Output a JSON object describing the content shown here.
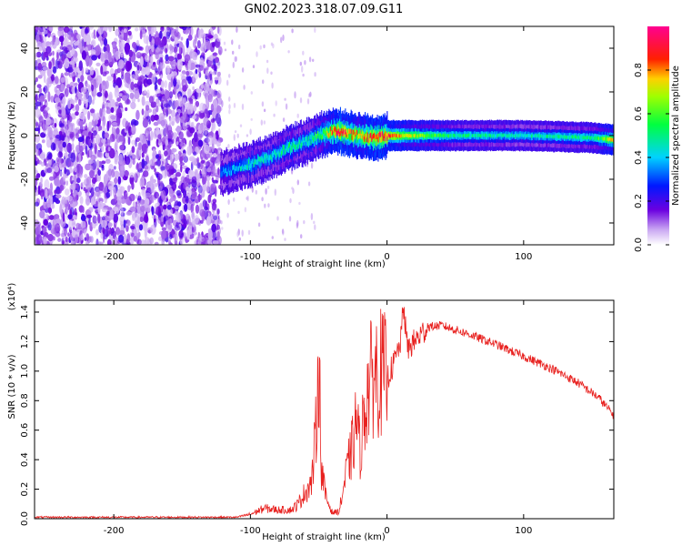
{
  "title": "GN02.2023.318.07.09.G11",
  "colors": {
    "snr_line": "#e8211f",
    "axis": "#000000",
    "background": "#ffffff"
  },
  "chart_data": [
    {
      "type": "heatmap",
      "xlabel": "Height of straight line (km)",
      "ylabel": "Frequency (Hz)",
      "xlim": [
        -258,
        166
      ],
      "ylim": [
        -50,
        50
      ],
      "x_ticks": [
        -200,
        -100,
        0,
        100
      ],
      "x_tick_labels": [
        "-200",
        "-100",
        "0",
        "100"
      ],
      "y_ticks": [
        -40,
        -20,
        0,
        20,
        40
      ],
      "y_tick_labels": [
        "-40",
        "-20",
        "0",
        "20",
        "40"
      ],
      "colorbar": {
        "label": "Normalized spectral amplitude",
        "range": [
          0,
          1
        ],
        "ticks": [
          0.0,
          0.2,
          0.4,
          0.6,
          0.8
        ],
        "tick_labels": [
          "0.0",
          "0.2",
          "0.4",
          "0.6",
          "0.8"
        ],
        "colormap": "rainbow (white-violet-blue-cyan-green-yellow-red-magenta)"
      },
      "noise_region_x": [
        -258,
        -122
      ],
      "signal_ridge": {
        "x": [
          -122,
          -110,
          -100,
          -90,
          -80,
          -70,
          -60,
          -50,
          -40,
          -35,
          -30,
          -20,
          -10,
          0,
          20,
          50,
          100,
          150,
          166
        ],
        "frequency_hz": [
          -17,
          -15,
          -13,
          -11,
          -8,
          -5,
          -3,
          0,
          2,
          2,
          1,
          0,
          -1,
          0,
          0,
          0,
          0,
          -1,
          -2
        ],
        "amplitude": [
          0.35,
          0.4,
          0.45,
          0.45,
          0.45,
          0.5,
          0.45,
          0.55,
          0.8,
          0.9,
          0.85,
          0.75,
          0.9,
          0.85,
          0.65,
          0.5,
          0.45,
          0.5,
          0.75
        ]
      },
      "grid": false
    },
    {
      "type": "line",
      "xlabel": "Height of straight line (km)",
      "ylabel": "SNR (10 * v/v)",
      "y_scale_label": "(x10⁴)",
      "xlim": [
        -258,
        166
      ],
      "ylim": [
        0,
        1.48
      ],
      "x_ticks": [
        -200,
        -100,
        0,
        100
      ],
      "x_tick_labels": [
        "-200",
        "-100",
        "0",
        "100"
      ],
      "y_ticks": [
        0.0,
        0.2,
        0.4,
        0.6,
        0.8,
        1.0,
        1.2,
        1.4
      ],
      "y_tick_labels": [
        "0.0",
        "0.2",
        "0.4",
        "0.6",
        "0.8",
        "1.0",
        "1.2",
        "1.4"
      ],
      "series": [
        {
          "x": [
            -258,
            -200,
            -150,
            -110,
            -100,
            -90,
            -80,
            -70,
            -65,
            -60,
            -55,
            -52,
            -50,
            -48,
            -45,
            -40,
            -35,
            -30,
            -25,
            -22,
            -20,
            -18,
            -15,
            -10,
            -5,
            0,
            5,
            10,
            12,
            15,
            20,
            30,
            40,
            60,
            80,
            100,
            120,
            140,
            155,
            166
          ],
          "y": [
            0.01,
            0.01,
            0.01,
            0.01,
            0.03,
            0.07,
            0.06,
            0.06,
            0.1,
            0.18,
            0.25,
            0.6,
            1.15,
            0.35,
            0.15,
            0.04,
            0.05,
            0.3,
            0.5,
            0.7,
            0.45,
            0.6,
            0.85,
            0.98,
            1.0,
            0.95,
            1.05,
            1.2,
            1.45,
            1.15,
            1.2,
            1.3,
            1.31,
            1.25,
            1.18,
            1.1,
            1.02,
            0.92,
            0.82,
            0.7
          ]
        }
      ],
      "grid": false
    }
  ]
}
